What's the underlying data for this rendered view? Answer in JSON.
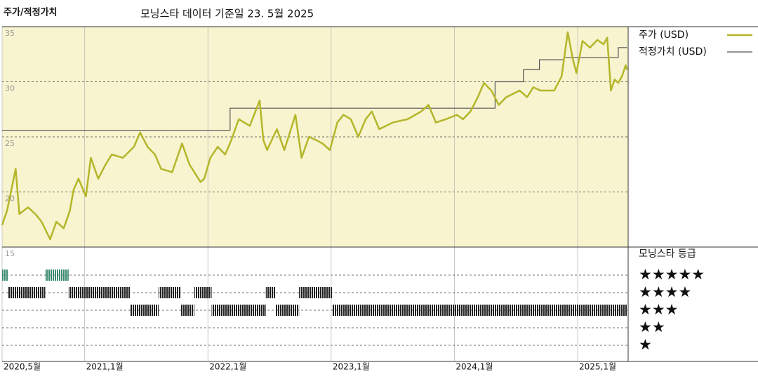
{
  "chart_data": {
    "type": "line",
    "title": "주가/적정가치",
    "subtitle": "모닝스타 데이터 기준일 23. 5월 2025",
    "xlim": [
      2020.33,
      2025.41
    ],
    "xticks": [
      {
        "value": 2020.33,
        "label": "2020,5월"
      },
      {
        "value": 2021,
        "label": "2021,1월"
      },
      {
        "value": 2022,
        "label": "2022,1월"
      },
      {
        "value": 2023,
        "label": "2023,1월"
      },
      {
        "value": 2024,
        "label": "2024,1월"
      },
      {
        "value": 2025,
        "label": "2025,1월"
      }
    ],
    "ylim": [
      15,
      35
    ],
    "yticks": [
      15,
      20,
      25,
      30,
      35
    ],
    "grid": true,
    "background": "#f8f4cf",
    "series": [
      {
        "name": "주가 (USD)",
        "color": "#b4b62a",
        "x": [
          2020.33,
          2020.37,
          2020.44,
          2020.47,
          2020.54,
          2020.6,
          2020.65,
          2020.72,
          2020.77,
          2020.83,
          2020.88,
          2020.91,
          2020.95,
          2021.01,
          2021.05,
          2021.11,
          2021.17,
          2021.22,
          2021.31,
          2021.4,
          2021.45,
          2021.51,
          2021.57,
          2021.62,
          2021.71,
          2021.79,
          2021.85,
          2021.94,
          2021.97,
          2022.02,
          2022.08,
          2022.14,
          2022.19,
          2022.25,
          2022.34,
          2022.42,
          2022.45,
          2022.48,
          2022.56,
          2022.62,
          2022.71,
          2022.76,
          2022.82,
          2022.88,
          2022.93,
          2022.99,
          2023.05,
          2023.1,
          2023.16,
          2023.22,
          2023.28,
          2023.33,
          2023.39,
          2023.5,
          2023.62,
          2023.73,
          2023.79,
          2023.85,
          2023.93,
          2024.02,
          2024.07,
          2024.13,
          2024.19,
          2024.24,
          2024.3,
          2024.36,
          2024.42,
          2024.53,
          2024.59,
          2024.64,
          2024.7,
          2024.81,
          2024.87,
          2024.92,
          2024.96,
          2024.99,
          2025.04,
          2025.1,
          2025.16,
          2025.21,
          2025.24,
          2025.27,
          2025.3,
          2025.33,
          2025.36,
          2025.39,
          2025.4
        ],
        "values": [
          17.0,
          18.3,
          22.1,
          18.0,
          18.6,
          18.0,
          17.3,
          15.7,
          17.3,
          16.7,
          18.3,
          20.2,
          21.2,
          19.6,
          23.1,
          21.2,
          22.5,
          23.4,
          23.1,
          24.1,
          25.4,
          24.1,
          23.4,
          22.1,
          21.8,
          24.4,
          22.5,
          20.9,
          21.2,
          23.1,
          24.1,
          23.4,
          24.7,
          26.6,
          26.0,
          28.3,
          24.7,
          23.8,
          25.7,
          23.8,
          27.0,
          23.1,
          25.0,
          24.7,
          24.4,
          23.8,
          26.3,
          27.0,
          26.6,
          25.0,
          26.6,
          27.3,
          25.7,
          26.3,
          26.6,
          27.3,
          27.9,
          26.3,
          26.6,
          27.0,
          26.6,
          27.3,
          28.6,
          29.9,
          29.2,
          27.9,
          28.6,
          29.2,
          28.6,
          29.5,
          29.2,
          29.2,
          30.5,
          34.5,
          32.1,
          30.8,
          33.7,
          33.1,
          33.8,
          33.4,
          34.0,
          29.2,
          30.2,
          29.9,
          30.5,
          31.5,
          31.1
        ]
      },
      {
        "name": "적정가치 (USD)",
        "color": "#555555",
        "step": true,
        "x": [
          2020.33,
          2022.18,
          2024.33,
          2024.56,
          2024.69,
          2024.89,
          2025.33,
          2025.4
        ],
        "values": [
          25.6,
          27.6,
          30.0,
          31.1,
          32.0,
          32.2,
          33.1,
          33.1
        ]
      }
    ],
    "ratings": {
      "title": "모닝스타 등급",
      "color": "#222222",
      "top_color": "#3a8a6e",
      "ticks": [
        {
          "value": 5,
          "label": "★★★★★"
        },
        {
          "value": 4,
          "label": "★★★★"
        },
        {
          "value": 3,
          "label": "★★★"
        },
        {
          "value": 2,
          "label": "★★"
        },
        {
          "value": 1,
          "label": "★"
        }
      ],
      "periods": [
        {
          "start": 2020.33,
          "end": 2020.38,
          "stars": 5
        },
        {
          "start": 2020.38,
          "end": 2020.68,
          "stars": 4
        },
        {
          "start": 2020.68,
          "end": 2020.87,
          "stars": 5
        },
        {
          "start": 2020.87,
          "end": 2021.37,
          "stars": 4
        },
        {
          "start": 2021.37,
          "end": 2021.6,
          "stars": 3
        },
        {
          "start": 2021.6,
          "end": 2021.78,
          "stars": 4
        },
        {
          "start": 2021.78,
          "end": 2021.89,
          "stars": 3
        },
        {
          "start": 2021.89,
          "end": 2022.03,
          "stars": 4
        },
        {
          "start": 2022.03,
          "end": 2022.47,
          "stars": 3
        },
        {
          "start": 2022.47,
          "end": 2022.55,
          "stars": 4
        },
        {
          "start": 2022.55,
          "end": 2022.74,
          "stars": 3
        },
        {
          "start": 2022.74,
          "end": 2023.01,
          "stars": 4
        },
        {
          "start": 2023.01,
          "end": 2025.4,
          "stars": 3
        }
      ]
    }
  }
}
